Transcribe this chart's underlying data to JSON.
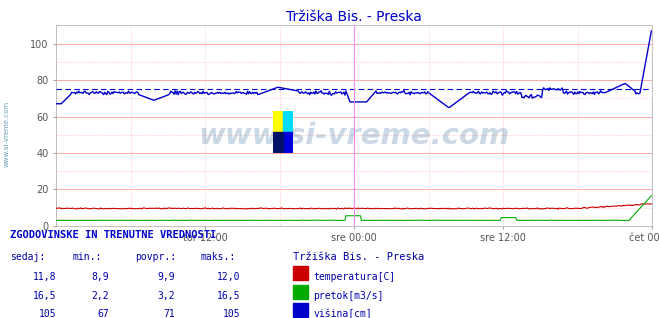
{
  "title": "Tržiška Bis. - Preska",
  "title_color": "#0000cc",
  "bg_color": "#ffffff",
  "plot_bg_color": "#ffffff",
  "grid_color_major": "#ffaaaa",
  "grid_color_minor": "#ddddff",
  "xlim": [
    0,
    576
  ],
  "ylim": [
    0,
    110
  ],
  "yticks": [
    0,
    20,
    40,
    60,
    80,
    100
  ],
  "xtick_labels": [
    "tor 12:00",
    "sre 00:00",
    "sre 12:00",
    "čet 00:00"
  ],
  "xtick_positions": [
    144,
    288,
    432,
    576
  ],
  "vline_color": "#ff66ff",
  "watermark_text": "www.si-vreme.com",
  "watermark_color": "#336699",
  "watermark_alpha": 0.25,
  "left_label": "www.si-vreme.com",
  "left_label_color": "#4488aa",
  "footer_title": "ZGODOVINSKE IN TRENUTNE VREDNOSTI",
  "footer_headers": [
    "sedaj:",
    "min.:",
    "povpr.:",
    "maks.:"
  ],
  "footer_station": "Tržiška Bis. - Preska",
  "footer_rows": [
    {
      "values": [
        "11,8",
        "8,9",
        "9,9",
        "12,0"
      ],
      "label": "temperatura[C]",
      "color": "#cc0000"
    },
    {
      "values": [
        "16,5",
        "2,2",
        "3,2",
        "16,5"
      ],
      "label": "pretok[m3/s]",
      "color": "#00aa00"
    },
    {
      "values": [
        "105",
        "67",
        "71",
        "105"
      ],
      "label": "višina[cm]",
      "color": "#0000cc"
    }
  ]
}
